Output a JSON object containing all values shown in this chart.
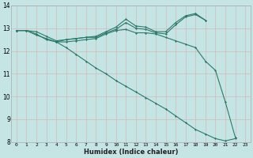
{
  "title": "",
  "xlabel": "Humidex (Indice chaleur)",
  "x_values": [
    0,
    1,
    2,
    3,
    4,
    5,
    6,
    7,
    8,
    9,
    10,
    11,
    12,
    13,
    14,
    15,
    16,
    17,
    18,
    19,
    20,
    21,
    22,
    23
  ],
  "line1": [
    12.9,
    12.9,
    12.85,
    12.65,
    12.45,
    12.5,
    12.55,
    12.6,
    12.65,
    12.85,
    13.05,
    13.4,
    13.1,
    13.05,
    12.85,
    12.85,
    13.25,
    13.55,
    13.65,
    13.35,
    null,
    null,
    null,
    null
  ],
  "line2": [
    12.9,
    12.9,
    12.7,
    12.55,
    12.4,
    12.5,
    12.55,
    12.6,
    12.6,
    12.8,
    12.95,
    13.25,
    13.0,
    12.95,
    12.8,
    12.75,
    13.15,
    13.5,
    13.6,
    13.35,
    null,
    null,
    null,
    null
  ],
  "line3": [
    12.9,
    12.9,
    12.75,
    12.5,
    12.4,
    12.4,
    12.45,
    12.5,
    12.55,
    12.75,
    12.9,
    12.95,
    12.8,
    12.8,
    12.75,
    12.6,
    12.45,
    12.3,
    12.15,
    11.55,
    11.15,
    9.75,
    8.2,
    null
  ],
  "line4": [
    12.9,
    null,
    null,
    null,
    12.4,
    12.15,
    11.85,
    11.55,
    11.25,
    11.0,
    10.7,
    10.45,
    10.2,
    9.95,
    9.7,
    9.45,
    9.15,
    8.85,
    8.55,
    8.35,
    8.15,
    8.05,
    8.15,
    null
  ],
  "line_color": "#2a7a6a",
  "bg_color": "#c5e5e5",
  "grid_major_color": "#d4b8b8",
  "grid_minor_color": "#d4b8b8",
  "ylim": [
    8,
    14
  ],
  "xlim": [
    -0.5,
    23.5
  ],
  "yticks": [
    8,
    9,
    10,
    11,
    12,
    13,
    14
  ]
}
